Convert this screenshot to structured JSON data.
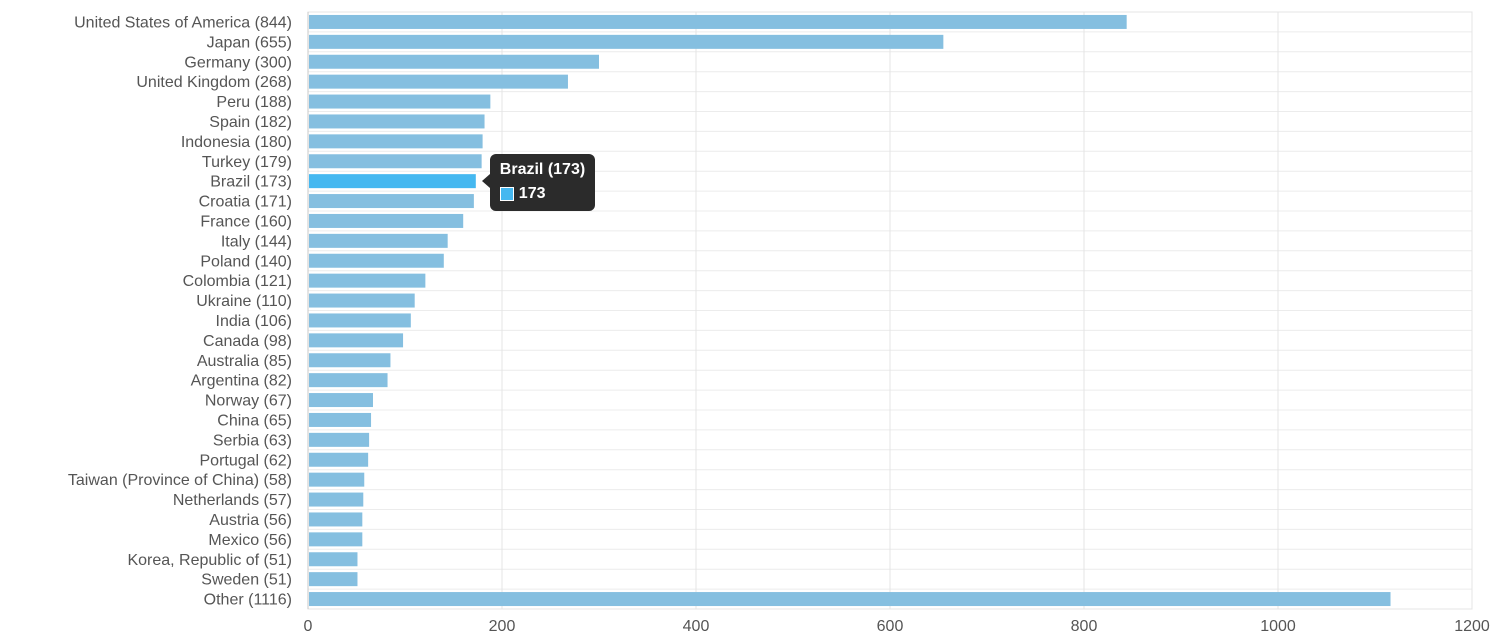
{
  "colors": {
    "bar": "#85bfe0",
    "bar_highlight": "#45b8f0",
    "tooltip_bg": "#2b2b2b",
    "text": "#555555"
  },
  "chart_data": {
    "type": "bar",
    "orientation": "horizontal",
    "categories": [
      "United States of America (844)",
      "Japan (655)",
      "Germany (300)",
      "United Kingdom (268)",
      "Peru (188)",
      "Spain (182)",
      "Indonesia (180)",
      "Turkey (179)",
      "Brazil (173)",
      "Croatia (171)",
      "France (160)",
      "Italy (144)",
      "Poland (140)",
      "Colombia (121)",
      "Ukraine (110)",
      "India (106)",
      "Canada (98)",
      "Australia (85)",
      "Argentina (82)",
      "Norway (67)",
      "China (65)",
      "Serbia (63)",
      "Portugal (62)",
      "Taiwan (Province of China) (58)",
      "Netherlands (57)",
      "Austria (56)",
      "Mexico (56)",
      "Korea, Republic of (51)",
      "Sweden (51)",
      "Other (1116)"
    ],
    "values": [
      844,
      655,
      300,
      268,
      188,
      182,
      180,
      179,
      173,
      171,
      160,
      144,
      140,
      121,
      110,
      106,
      98,
      85,
      82,
      67,
      65,
      63,
      62,
      58,
      57,
      56,
      56,
      51,
      51,
      1116
    ],
    "xlim": [
      0,
      1200
    ],
    "xticks": [
      "0",
      "200",
      "400",
      "600",
      "800",
      "1000",
      "1200"
    ],
    "xtick_values": [
      0,
      200,
      400,
      600,
      800,
      1000,
      1200
    ],
    "grid": true,
    "title": "",
    "xlabel": "",
    "ylabel": "",
    "highlighted_category": "Brazil (173)"
  },
  "tooltip": {
    "title": "Brazil (173)",
    "value": "173"
  }
}
